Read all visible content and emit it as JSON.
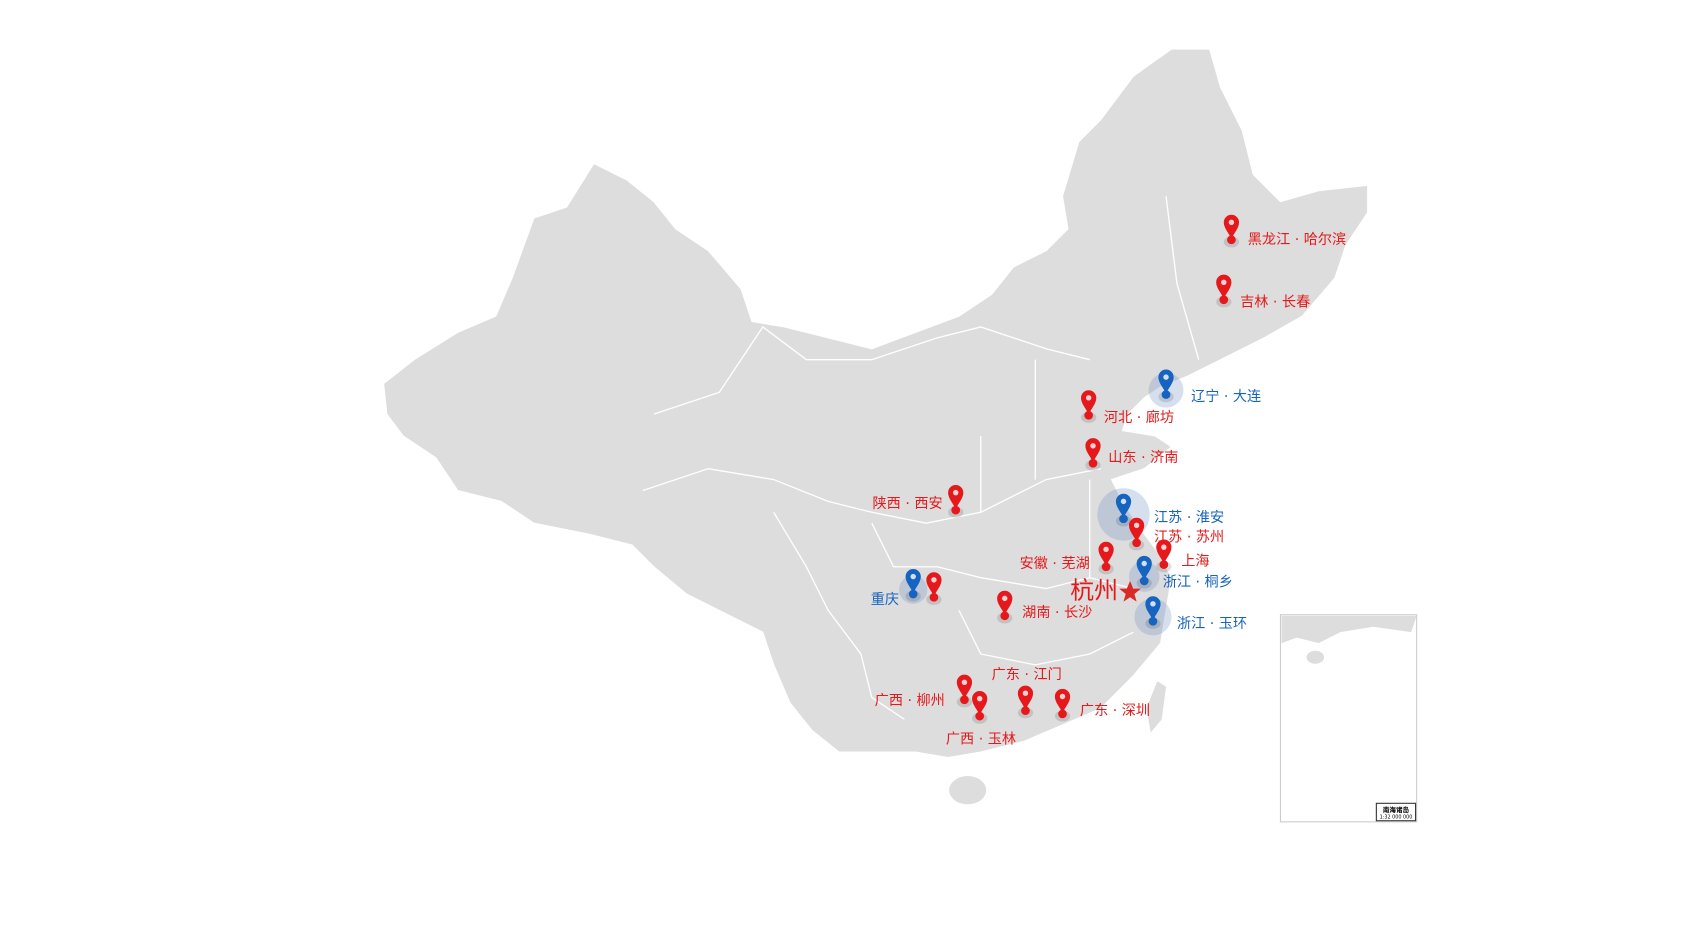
{
  "colors": {
    "land": "#dddddd",
    "border": "#ffffff",
    "red": "#e5191b",
    "blue": "#1763c0",
    "star": "#d92a26"
  },
  "center": {
    "name": "杭州",
    "icon": "star-icon"
  },
  "markers": [
    {
      "id": "harbin",
      "label": "黑龙江 · 哈尔滨",
      "color": "red"
    },
    {
      "id": "changchun",
      "label": "吉林 · 长春",
      "color": "red"
    },
    {
      "id": "dalian",
      "label": "辽宁 · 大连",
      "color": "blue"
    },
    {
      "id": "langfang",
      "label": "河北 · 廊坊",
      "color": "red"
    },
    {
      "id": "jinan",
      "label": "山东 · 济南",
      "color": "red"
    },
    {
      "id": "xian",
      "label": "陕西 · 西安",
      "color": "red"
    },
    {
      "id": "huaian",
      "label": "江苏 · 淮安",
      "color": "blue"
    },
    {
      "id": "suzhou",
      "label": "江苏 · 苏州",
      "color": "red"
    },
    {
      "id": "wuhu",
      "label": "安徽 · 芜湖",
      "color": "red"
    },
    {
      "id": "shanghai",
      "label": "上海",
      "color": "red"
    },
    {
      "id": "tongxiang",
      "label": "浙江 · 桐乡",
      "color": "blue"
    },
    {
      "id": "yuhuan",
      "label": "浙江 · 玉环",
      "color": "blue"
    },
    {
      "id": "chongqing",
      "label": "重庆",
      "color": "blue"
    },
    {
      "id": "chongqing2",
      "label": "",
      "color": "red"
    },
    {
      "id": "changsha",
      "label": "湖南 · 长沙",
      "color": "red"
    },
    {
      "id": "jiangmen",
      "label": "广东 · 江门",
      "color": "red"
    },
    {
      "id": "liuzhou",
      "label": "广西 · 柳州",
      "color": "red"
    },
    {
      "id": "yulin",
      "label": "广西 · 玉林",
      "color": "red"
    },
    {
      "id": "shenzhen",
      "label": "广东 · 深圳",
      "color": "red"
    }
  ],
  "inset": {
    "title": "南海诸岛",
    "scale": "1:32 000 000"
  }
}
